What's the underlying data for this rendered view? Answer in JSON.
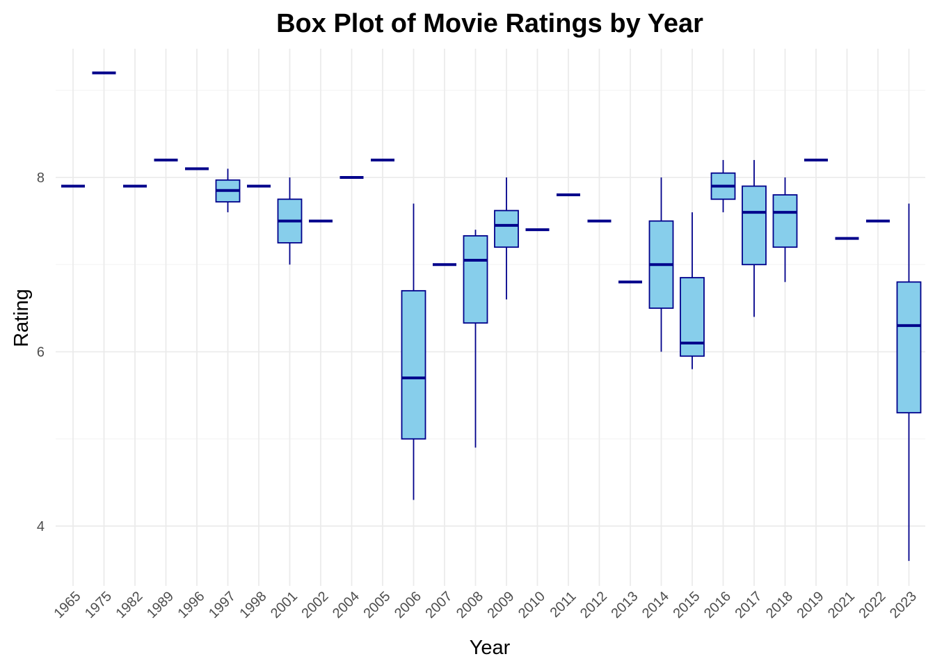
{
  "chart_data": {
    "type": "box",
    "title": "Box Plot of Movie Ratings by Year",
    "xlabel": "Year",
    "ylabel": "Rating",
    "ylim": [
      3.4,
      9.5
    ],
    "y_ticks": [
      4,
      6,
      8
    ],
    "grid": true,
    "legend": "none",
    "colors": {
      "box_fill": "#87CEEB",
      "box_stroke": "#00008B",
      "grid_major": "#ebebeb",
      "grid_minor": "#f4f4f4"
    },
    "categories": [
      "1965",
      "1975",
      "1982",
      "1989",
      "1996",
      "1997",
      "1998",
      "2001",
      "2002",
      "2004",
      "2005",
      "2006",
      "2007",
      "2008",
      "2009",
      "2010",
      "2011",
      "2012",
      "2013",
      "2014",
      "2015",
      "2016",
      "2017",
      "2018",
      "2019",
      "2021",
      "2022",
      "2023"
    ],
    "boxes": [
      {
        "year": "1965",
        "min": 7.9,
        "q1": 7.9,
        "median": 7.9,
        "q3": 7.9,
        "max": 7.9
      },
      {
        "year": "1975",
        "min": 9.2,
        "q1": 9.2,
        "median": 9.2,
        "q3": 9.2,
        "max": 9.2
      },
      {
        "year": "1982",
        "min": 7.9,
        "q1": 7.9,
        "median": 7.9,
        "q3": 7.9,
        "max": 7.9
      },
      {
        "year": "1989",
        "min": 8.2,
        "q1": 8.2,
        "median": 8.2,
        "q3": 8.2,
        "max": 8.2
      },
      {
        "year": "1996",
        "min": 8.1,
        "q1": 8.1,
        "median": 8.1,
        "q3": 8.1,
        "max": 8.1
      },
      {
        "year": "1997",
        "min": 7.6,
        "q1": 7.72,
        "median": 7.85,
        "q3": 7.97,
        "max": 8.1
      },
      {
        "year": "1998",
        "min": 7.9,
        "q1": 7.9,
        "median": 7.9,
        "q3": 7.9,
        "max": 7.9
      },
      {
        "year": "2001",
        "min": 7.0,
        "q1": 7.25,
        "median": 7.5,
        "q3": 7.75,
        "max": 8.0
      },
      {
        "year": "2002",
        "min": 7.5,
        "q1": 7.5,
        "median": 7.5,
        "q3": 7.5,
        "max": 7.5
      },
      {
        "year": "2004",
        "min": 8.0,
        "q1": 8.0,
        "median": 8.0,
        "q3": 8.0,
        "max": 8.0
      },
      {
        "year": "2005",
        "min": 8.2,
        "q1": 8.2,
        "median": 8.2,
        "q3": 8.2,
        "max": 8.2
      },
      {
        "year": "2006",
        "min": 4.3,
        "q1": 5.0,
        "median": 5.7,
        "q3": 6.7,
        "max": 7.7
      },
      {
        "year": "2007",
        "min": 7.0,
        "q1": 7.0,
        "median": 7.0,
        "q3": 7.0,
        "max": 7.0
      },
      {
        "year": "2008",
        "min": 4.9,
        "q1": 6.33,
        "median": 7.05,
        "q3": 7.33,
        "max": 7.4
      },
      {
        "year": "2009",
        "min": 6.6,
        "q1": 7.2,
        "median": 7.45,
        "q3": 7.62,
        "max": 8.0
      },
      {
        "year": "2010",
        "min": 7.4,
        "q1": 7.4,
        "median": 7.4,
        "q3": 7.4,
        "max": 7.4
      },
      {
        "year": "2011",
        "min": 7.8,
        "q1": 7.8,
        "median": 7.8,
        "q3": 7.8,
        "max": 7.8
      },
      {
        "year": "2012",
        "min": 7.5,
        "q1": 7.5,
        "median": 7.5,
        "q3": 7.5,
        "max": 7.5
      },
      {
        "year": "2013",
        "min": 6.8,
        "q1": 6.8,
        "median": 6.8,
        "q3": 6.8,
        "max": 6.8
      },
      {
        "year": "2014",
        "min": 6.0,
        "q1": 6.5,
        "median": 7.0,
        "q3": 7.5,
        "max": 8.0
      },
      {
        "year": "2015",
        "min": 5.8,
        "q1": 5.95,
        "median": 6.1,
        "q3": 6.85,
        "max": 7.6
      },
      {
        "year": "2016",
        "min": 7.6,
        "q1": 7.75,
        "median": 7.9,
        "q3": 8.05,
        "max": 8.2
      },
      {
        "year": "2017",
        "min": 6.4,
        "q1": 7.0,
        "median": 7.6,
        "q3": 7.9,
        "max": 8.2
      },
      {
        "year": "2018",
        "min": 6.8,
        "q1": 7.2,
        "median": 7.6,
        "q3": 7.8,
        "max": 8.0
      },
      {
        "year": "2019",
        "min": 8.2,
        "q1": 8.2,
        "median": 8.2,
        "q3": 8.2,
        "max": 8.2
      },
      {
        "year": "2021",
        "min": 7.3,
        "q1": 7.3,
        "median": 7.3,
        "q3": 7.3,
        "max": 7.3
      },
      {
        "year": "2022",
        "min": 7.5,
        "q1": 7.5,
        "median": 7.5,
        "q3": 7.5,
        "max": 7.5
      },
      {
        "year": "2023",
        "min": 3.6,
        "q1": 5.3,
        "median": 6.3,
        "q3": 6.8,
        "max": 7.7
      }
    ]
  }
}
